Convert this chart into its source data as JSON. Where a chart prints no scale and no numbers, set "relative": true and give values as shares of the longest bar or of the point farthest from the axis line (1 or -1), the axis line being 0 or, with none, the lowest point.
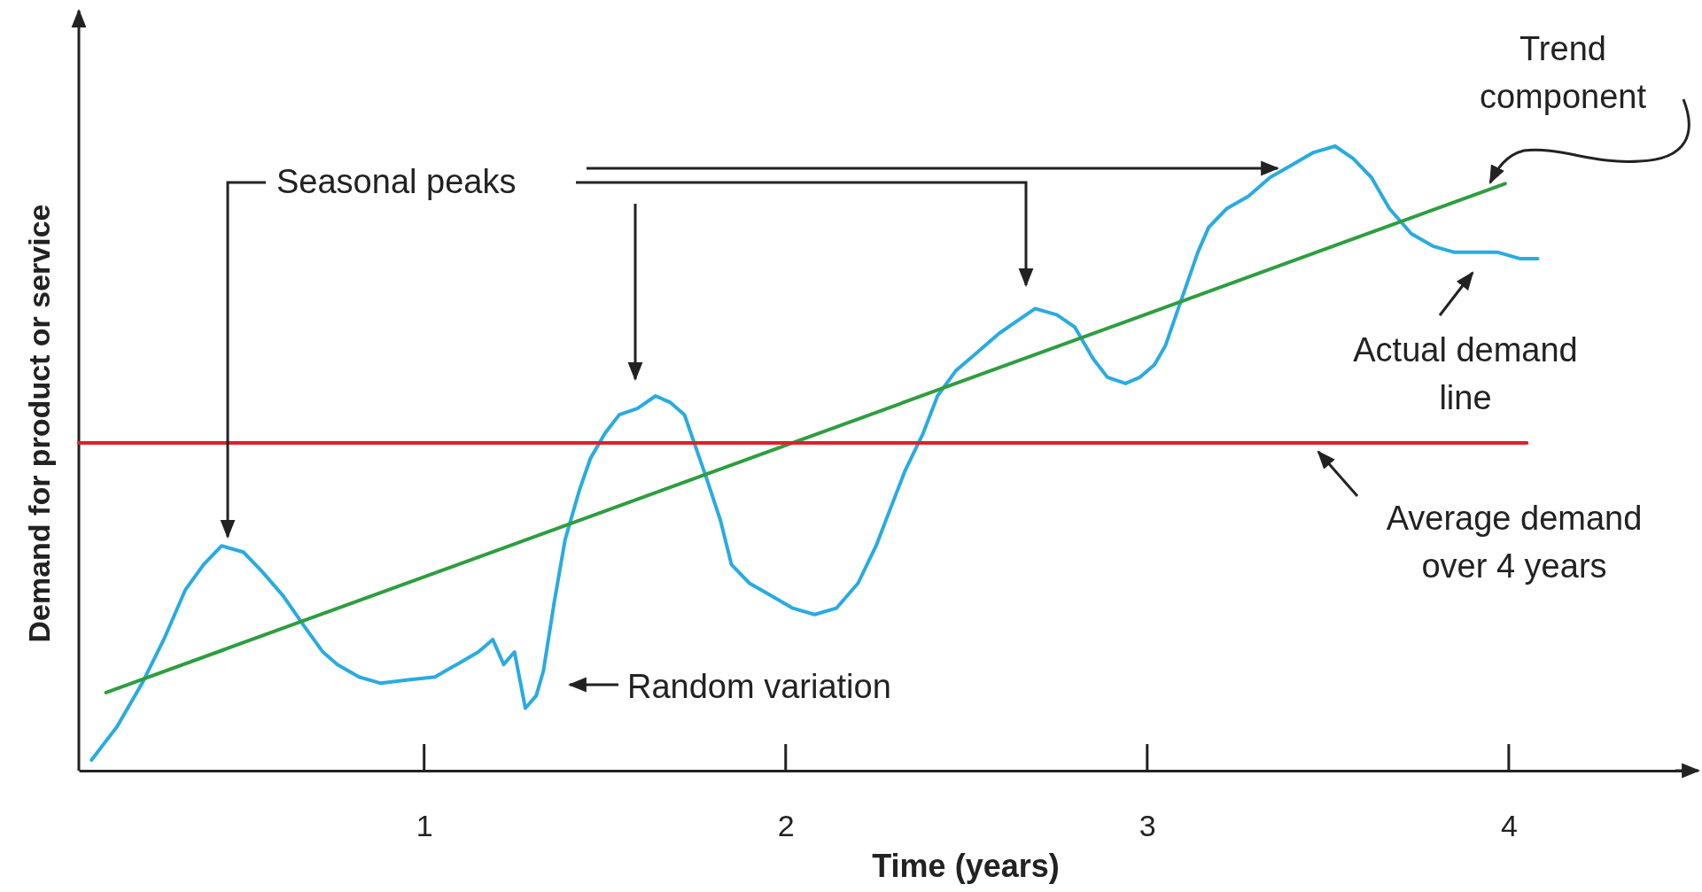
{
  "chart_data": {
    "type": "line",
    "relative": true,
    "xlabel": "Time (years)",
    "ylabel": "Demand for product or service",
    "xlim": [
      0.045,
      4.51
    ],
    "xticks": [
      1,
      2,
      3,
      4
    ],
    "grid": false,
    "marker": "none",
    "line_style": "solid",
    "series": [
      {
        "color": "#29abe2",
        "x": [
          0.08,
          0.15,
          0.22,
          0.28,
          0.34,
          0.39,
          0.44,
          0.5,
          0.55,
          0.61,
          0.67,
          0.72,
          0.76,
          0.82,
          0.88,
          0.95,
          1.03,
          1.09,
          1.15,
          1.19,
          1.22,
          1.25,
          1.28,
          1.31,
          1.33,
          1.36,
          1.39,
          1.43,
          1.46,
          1.5,
          1.54,
          1.59,
          1.64,
          1.68,
          1.72,
          1.75,
          1.78,
          1.82,
          1.85,
          1.9,
          1.96,
          2.02,
          2.08,
          2.14,
          2.2,
          2.25,
          2.29,
          2.33,
          2.38,
          2.42,
          2.47,
          2.53,
          2.59,
          2.64,
          2.69,
          2.75,
          2.8,
          2.85,
          2.89,
          2.94,
          2.98,
          3.02,
          3.05,
          3.08,
          3.11,
          3.14,
          3.17,
          3.22,
          3.28,
          3.34,
          3.4,
          3.46,
          3.52,
          3.57,
          3.62,
          3.67,
          3.73,
          3.79,
          3.85,
          3.91,
          3.97,
          4.03,
          4.08
        ],
        "values": [
          0.017,
          0.07,
          0.14,
          0.21,
          0.29,
          0.33,
          0.36,
          0.35,
          0.32,
          0.28,
          0.23,
          0.19,
          0.17,
          0.15,
          0.14,
          0.145,
          0.15,
          0.17,
          0.19,
          0.21,
          0.17,
          0.19,
          0.1,
          0.12,
          0.16,
          0.27,
          0.37,
          0.45,
          0.5,
          0.54,
          0.57,
          0.58,
          0.6,
          0.59,
          0.57,
          0.52,
          0.47,
          0.4,
          0.33,
          0.3,
          0.28,
          0.26,
          0.25,
          0.26,
          0.3,
          0.36,
          0.42,
          0.48,
          0.54,
          0.6,
          0.64,
          0.67,
          0.7,
          0.72,
          0.74,
          0.73,
          0.71,
          0.66,
          0.63,
          0.62,
          0.63,
          0.65,
          0.68,
          0.73,
          0.78,
          0.83,
          0.87,
          0.9,
          0.92,
          0.95,
          0.97,
          0.99,
          1,
          0.98,
          0.95,
          0.9,
          0.86,
          0.84,
          0.83,
          0.83,
          0.83,
          0.82,
          0.82
        ]
      },
      {
        "color": "#2e9e3e",
        "x": [
          0.12,
          3.99
        ],
        "values": [
          0.125,
          0.94
        ]
      },
      {
        "color": "#e0202a",
        "x": [
          0.045,
          4.05
        ],
        "values": [
          0.525,
          0.525
        ]
      }
    ],
    "annotations": [
      "Seasonal peaks",
      "Random variation",
      "Trend\ncomponent",
      "Actual demand\nline",
      "Average demand\nover 4 years"
    ]
  }
}
